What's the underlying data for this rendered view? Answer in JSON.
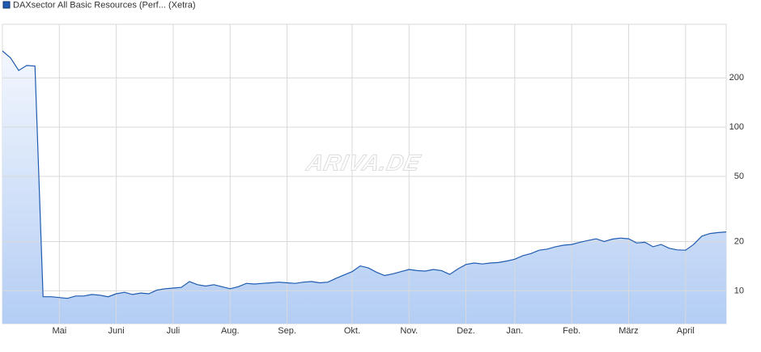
{
  "chart_data": {
    "type": "area",
    "legend_position": "top-left",
    "log_scale": true,
    "grid": true,
    "watermark": "ARIVA.DE",
    "categories": [
      null,
      null,
      null,
      null,
      null,
      null,
      null,
      "Mai",
      null,
      null,
      null,
      null,
      null,
      null,
      "Juni",
      null,
      null,
      null,
      null,
      null,
      null,
      "Juli",
      null,
      null,
      null,
      null,
      null,
      null,
      "Aug.",
      null,
      null,
      null,
      null,
      null,
      null,
      "Sep.",
      null,
      null,
      null,
      null,
      null,
      null,
      null,
      "Okt.",
      null,
      null,
      null,
      null,
      null,
      null,
      "Nov.",
      null,
      null,
      null,
      null,
      null,
      null,
      "Dez.",
      null,
      null,
      null,
      null,
      null,
      "Jan.",
      null,
      null,
      null,
      null,
      null,
      null,
      "Feb.",
      null,
      null,
      null,
      null,
      null,
      null,
      "März",
      null,
      null,
      null,
      null,
      null,
      null,
      "April",
      null,
      null,
      null,
      null,
      null
    ],
    "series": [
      {
        "name": "DAXsector All Basic Resources (Perf... (Xetra)",
        "color": "#1f5bb0",
        "values": [
          292,
          265,
          222,
          238,
          236,
          9.2,
          9.2,
          9.1,
          9.0,
          9.3,
          9.3,
          9.5,
          9.4,
          9.2,
          9.6,
          9.8,
          9.5,
          9.7,
          9.6,
          10.1,
          10.3,
          10.4,
          10.5,
          11.4,
          10.9,
          10.7,
          10.9,
          10.6,
          10.3,
          10.6,
          11.1,
          11.0,
          11.1,
          11.2,
          11.3,
          11.2,
          11.1,
          11.3,
          11.4,
          11.2,
          11.3,
          11.9,
          12.5,
          13.1,
          14.2,
          13.8,
          13.0,
          12.4,
          12.7,
          13.1,
          13.5,
          13.3,
          13.2,
          13.5,
          13.3,
          12.6,
          13.6,
          14.5,
          14.8,
          14.6,
          14.8,
          14.9,
          15.2,
          15.6,
          16.4,
          16.9,
          17.7,
          18.0,
          18.6,
          19.0,
          19.2,
          19.8,
          20.3,
          20.8,
          20.0,
          20.7,
          21.0,
          20.8,
          19.6,
          19.8,
          18.6,
          19.2,
          18.2,
          17.8,
          17.7,
          19.2,
          21.6,
          22.4,
          22.7,
          22.9
        ]
      }
    ],
    "ylim": [
      6.3,
      425
    ],
    "yticks": [
      10,
      20,
      50,
      100,
      200
    ]
  }
}
